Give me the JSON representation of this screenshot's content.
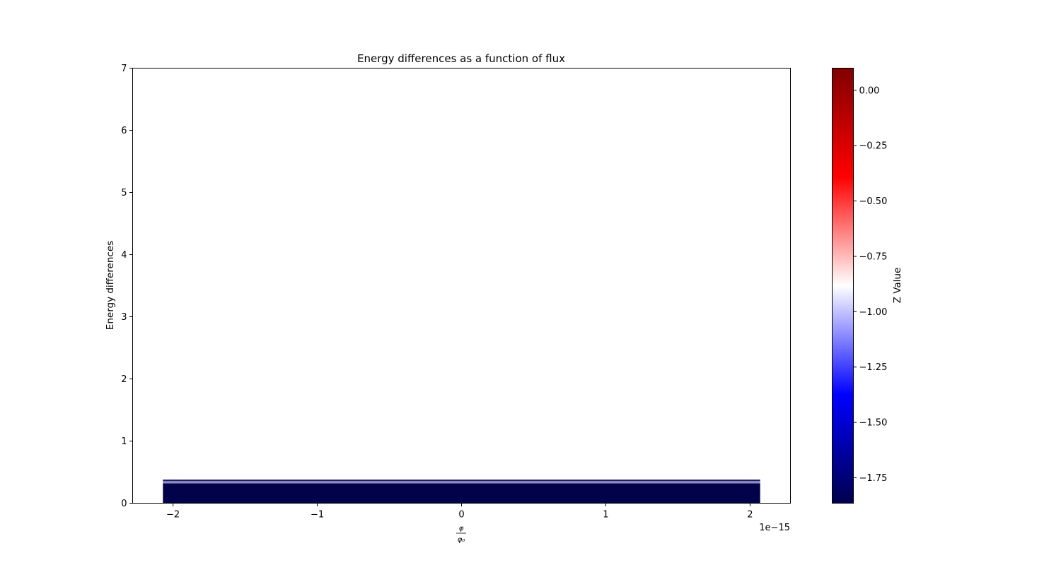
{
  "chart_data": [
    {
      "type": "heatmap",
      "title": "Energy differences as a function of flux",
      "xlabel_num": "φ",
      "xlabel_den": "φ₀",
      "ylabel": "Energy differences",
      "x_offset_text": "1e−15",
      "x_ticks": [
        -2,
        -1,
        0,
        1,
        2
      ],
      "x_tick_labels": [
        "−2",
        "−1",
        "0",
        "1",
        "2"
      ],
      "y_ticks": [
        0,
        1,
        2,
        3,
        4,
        5,
        6,
        7
      ],
      "y_tick_labels": [
        "0",
        "1",
        "2",
        "3",
        "4",
        "5",
        "6",
        "7"
      ],
      "xlim": [
        -2.28,
        2.28
      ],
      "ylim": [
        0,
        7
      ],
      "grid": false,
      "bands": [
        {
          "x0": -2.07,
          "x1": 2.07,
          "y0": 0.0,
          "y1": 0.32,
          "color": "#02024a"
        },
        {
          "x0": -2.07,
          "x1": 2.07,
          "y0": 0.32,
          "y1": 0.355,
          "color": "#8c8cc0"
        },
        {
          "x0": -2.07,
          "x1": 2.07,
          "y0": 0.355,
          "y1": 0.38,
          "color": "#1a1a66"
        }
      ]
    },
    {
      "type": "colorbar",
      "label": "Z Value",
      "range": [
        -1.865,
        0.1
      ],
      "ticks": [
        0.0,
        -0.25,
        -0.5,
        -0.75,
        -1.0,
        -1.25,
        -1.5,
        -1.75
      ],
      "tick_labels": [
        "0.00",
        "−0.25",
        "−0.50",
        "−0.75",
        "−1.00",
        "−1.25",
        "−1.50",
        "−1.75"
      ],
      "colormap": "seismic",
      "stops": [
        "#00004d",
        "#0000ff",
        "#ffffff",
        "#ff0000",
        "#800000"
      ]
    }
  ]
}
